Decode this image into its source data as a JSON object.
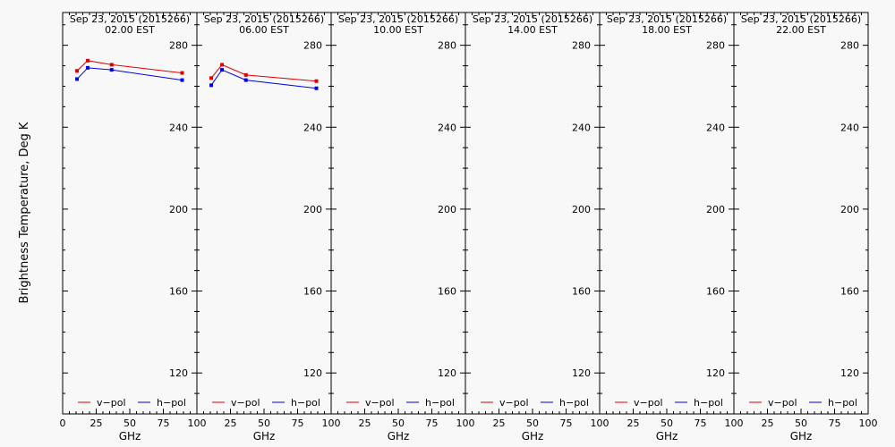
{
  "ylabel": "Brightness Temperature, Deg K",
  "xlabel": "GHz",
  "legend": {
    "v_label": "v−pol",
    "h_label": "h−pol"
  },
  "colors": {
    "v": "#e00000",
    "h": "#0000e0",
    "axis": "#000000",
    "background": "#f8f8f8"
  },
  "chart_data": [
    {
      "type": "line",
      "title": "Sep 23, 2015 (2015266)",
      "subtitle": "02.00 EST",
      "xlim": [
        0,
        100
      ],
      "ylim": [
        100,
        296
      ],
      "x_ticks": [
        "0",
        "25",
        "50",
        "75",
        "100"
      ],
      "y_ticks": [
        120,
        160,
        200,
        240,
        280
      ],
      "legend_position": "bottom",
      "series": [
        {
          "name": "v−pol",
          "x": [
            10.7,
            18.7,
            36.5,
            89.0
          ],
          "y": [
            267.5,
            272.5,
            270.5,
            266.5
          ]
        },
        {
          "name": "h−pol",
          "x": [
            10.7,
            18.7,
            36.5,
            89.0
          ],
          "y": [
            263.5,
            269.0,
            268.0,
            263.0
          ]
        }
      ]
    },
    {
      "type": "line",
      "title": "Sep 23, 2015 (2015266)",
      "subtitle": "06.00 EST",
      "xlim": [
        0,
        100
      ],
      "ylim": [
        100,
        296
      ],
      "x_ticks": [
        "",
        "25",
        "50",
        "75",
        "100"
      ],
      "y_ticks": [
        120,
        160,
        200,
        240,
        280
      ],
      "legend_position": "bottom",
      "series": [
        {
          "name": "v−pol",
          "x": [
            10.7,
            18.7,
            36.5,
            89.0
          ],
          "y": [
            264.0,
            270.5,
            265.5,
            262.5
          ]
        },
        {
          "name": "h−pol",
          "x": [
            10.7,
            18.7,
            36.5,
            89.0
          ],
          "y": [
            260.5,
            268.0,
            263.0,
            259.0
          ]
        }
      ]
    },
    {
      "type": "line",
      "title": "Sep 23, 2015 (2015266)",
      "subtitle": "10.00 EST",
      "xlim": [
        0,
        100
      ],
      "ylim": [
        100,
        296
      ],
      "x_ticks": [
        "",
        "25",
        "50",
        "75",
        "100"
      ],
      "y_ticks": [
        120,
        160,
        200,
        240,
        280
      ],
      "legend_position": "bottom",
      "series": [
        {
          "name": "v−pol",
          "x": [],
          "y": []
        },
        {
          "name": "h−pol",
          "x": [],
          "y": []
        }
      ]
    },
    {
      "type": "line",
      "title": "Sep 23, 2015 (2015266)",
      "subtitle": "14.00 EST",
      "xlim": [
        0,
        100
      ],
      "ylim": [
        100,
        296
      ],
      "x_ticks": [
        "",
        "25",
        "50",
        "75",
        "100"
      ],
      "y_ticks": [
        120,
        160,
        200,
        240,
        280
      ],
      "legend_position": "bottom",
      "series": [
        {
          "name": "v−pol",
          "x": [],
          "y": []
        },
        {
          "name": "h−pol",
          "x": [],
          "y": []
        }
      ]
    },
    {
      "type": "line",
      "title": "Sep 23, 2015 (2015266)",
      "subtitle": "18.00 EST",
      "xlim": [
        0,
        100
      ],
      "ylim": [
        100,
        296
      ],
      "x_ticks": [
        "",
        "25",
        "50",
        "75",
        "100"
      ],
      "y_ticks": [
        120,
        160,
        200,
        240,
        280
      ],
      "legend_position": "bottom",
      "series": [
        {
          "name": "v−pol",
          "x": [],
          "y": []
        },
        {
          "name": "h−pol",
          "x": [],
          "y": []
        }
      ]
    },
    {
      "type": "line",
      "title": "Sep 23, 2015 (2015266)",
      "subtitle": "22.00 EST",
      "xlim": [
        0,
        100
      ],
      "ylim": [
        100,
        296
      ],
      "x_ticks": [
        "",
        "25",
        "50",
        "75",
        "100"
      ],
      "y_ticks": [
        120,
        160,
        200,
        240,
        280
      ],
      "legend_position": "bottom",
      "series": [
        {
          "name": "v−pol",
          "x": [],
          "y": []
        },
        {
          "name": "h−pol",
          "x": [],
          "y": []
        }
      ]
    }
  ]
}
